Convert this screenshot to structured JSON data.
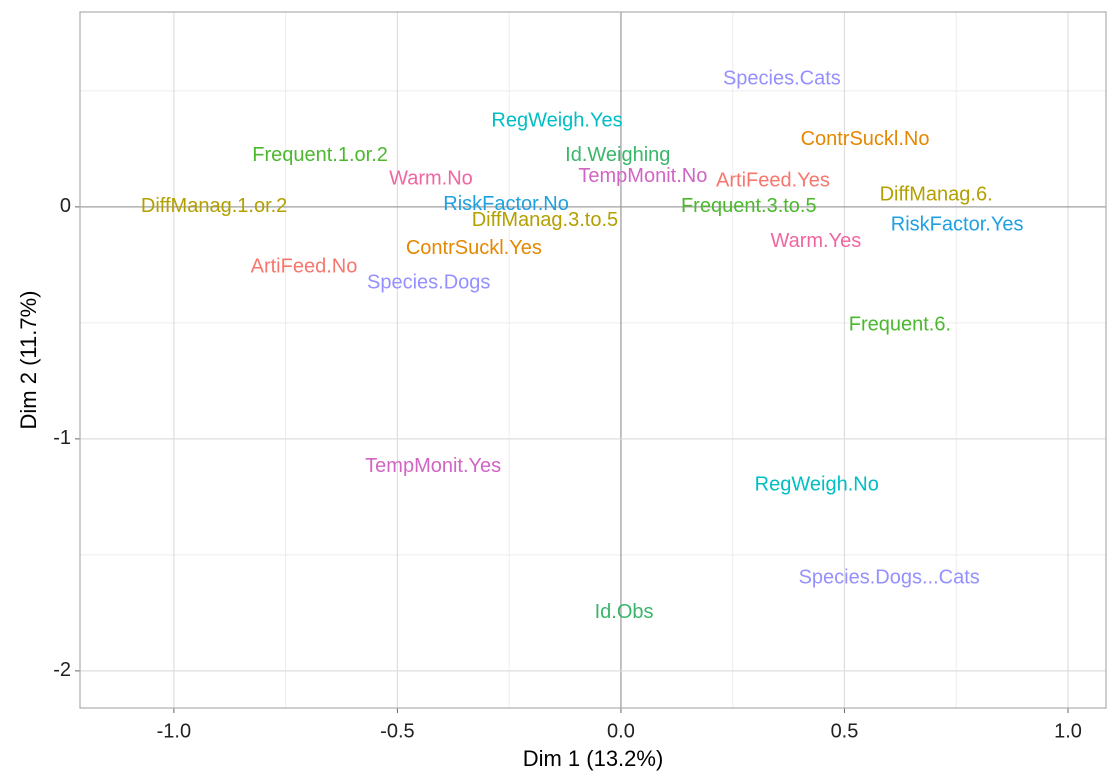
{
  "chart_data": {
    "type": "scatter",
    "xlabel": "Dim 1 (13.2%)",
    "ylabel": "Dim 2 (11.7%)",
    "labels": [
      "Species.Cats",
      "RegWeigh.Yes",
      "ContrSuckl.No",
      "Frequent.1.or.2",
      "Id.Weighing",
      "Warm.No",
      "TempMonit.No",
      "ArtiFeed.Yes",
      "DiffManag.6.",
      "DiffManag.1.or.2",
      "RiskFactor.No",
      "Frequent.3.to.5",
      "RiskFactor.Yes",
      "DiffManag.3.to.5",
      "Warm.Yes",
      "ContrSuckl.Yes",
      "ArtiFeed.No",
      "Species.Dogs",
      "Frequent.6.",
      "TempMonit.Yes",
      "RegWeigh.No",
      "Species.Dogs...Cats",
      "Id.Obs"
    ],
    "x": [
      0.36,
      -0.143,
      0.546,
      -0.673,
      -0.007,
      -0.425,
      0.049,
      0.34,
      0.705,
      -0.91,
      -0.257,
      0.286,
      0.752,
      -0.17,
      0.436,
      -0.329,
      -0.709,
      -0.43,
      0.624,
      -0.42,
      0.438,
      0.6,
      0.007
    ],
    "values": [
      0.55,
      0.37,
      0.29,
      0.22,
      0.22,
      0.12,
      0.13,
      0.11,
      0.05,
      0.0,
      0.01,
      0.0,
      -0.08,
      -0.06,
      -0.15,
      -0.18,
      -0.26,
      -0.33,
      -0.51,
      -1.12,
      -1.2,
      -1.6,
      -1.75
    ],
    "colors": [
      "#9590FF",
      "#00BFC4",
      "#E58700",
      "#4CB82E",
      "#39B66A",
      "#F066A0",
      "#D165C3",
      "#F8766D",
      "#B3A000",
      "#B3A000",
      "#1FA0E0",
      "#4CB82E",
      "#1FA0E0",
      "#B3A000",
      "#F066A0",
      "#E58700",
      "#F8766D",
      "#9590FF",
      "#4CB82E",
      "#D165C3",
      "#00BFC4",
      "#9590FF",
      "#39B66A"
    ],
    "xlim": [
      -1.21,
      1.085
    ],
    "ylim": [
      -2.16,
      0.84
    ],
    "xticks": [
      {
        "value": -1,
        "label": "-1.0"
      },
      {
        "value": -0.5,
        "label": "-0.5"
      },
      {
        "value": 0,
        "label": "0.0"
      },
      0.5,
      {
        "value": 1,
        "label": "1.0"
      }
    ],
    "yticks": [
      -2,
      -1,
      0
    ],
    "xticks_minor": [
      -0.75,
      -0.25,
      0.25,
      0.75
    ],
    "yticks_minor": [
      -1.5,
      -0.5,
      0.5
    ],
    "grid": true
  }
}
